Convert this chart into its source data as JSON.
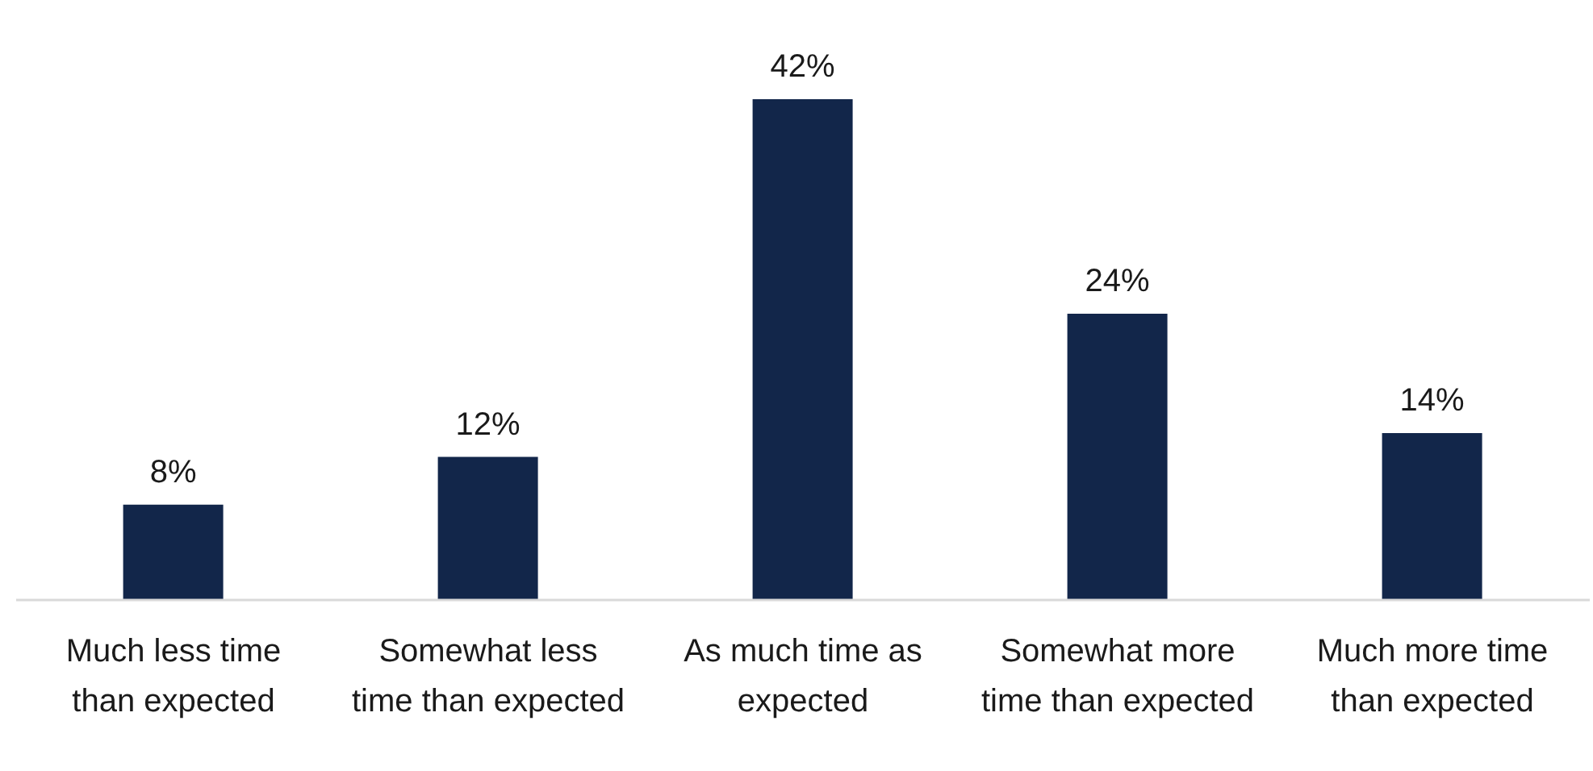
{
  "chart_data": {
    "type": "bar",
    "categories": [
      "Much less time than expected",
      "Somewhat less time than expected",
      "As much time as expected",
      "Somewhat more time than expected",
      "Much more time than expected"
    ],
    "values": [
      8,
      12,
      42,
      24,
      14
    ],
    "value_labels": [
      "8%",
      "12%",
      "42%",
      "24%",
      "14%"
    ],
    "color": "#12264a"
  }
}
